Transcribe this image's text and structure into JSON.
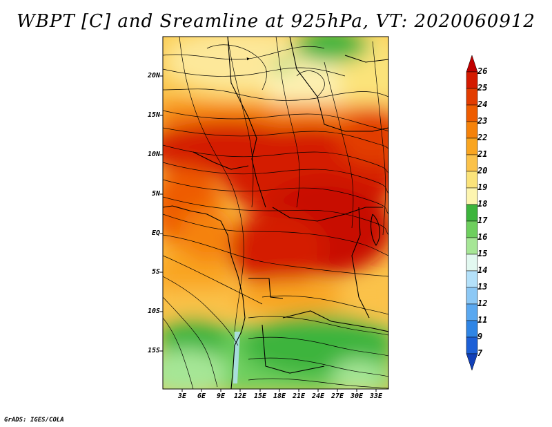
{
  "title": "WBPT [C] and Sreamline at 925hPa, VT: 2020060912",
  "footer": "GrADS: IGES/COLA",
  "map": {
    "latitude_labels": [
      "20N",
      "15N",
      "10N",
      "5N",
      "EQ",
      "5S",
      "10S",
      "15S"
    ],
    "longitude_labels": [
      "3E",
      "6E",
      "9E",
      "12E",
      "15E",
      "18E",
      "21E",
      "24E",
      "27E",
      "30E",
      "33E"
    ],
    "variable": "WBPT",
    "units": "C",
    "level": "925hPa",
    "valid_time": "2020060912"
  },
  "colorbar": {
    "labels": [
      "26",
      "25",
      "24",
      "23",
      "22",
      "21",
      "20",
      "19",
      "18",
      "17",
      "16",
      "15",
      "14",
      "13",
      "12",
      "11",
      "9",
      "7"
    ],
    "colors": [
      "#c00000",
      "#d41a00",
      "#e23c00",
      "#ee5c00",
      "#f5820a",
      "#f9a520",
      "#fbc24a",
      "#fbe37a",
      "#fdf5b0",
      "#3cb43c",
      "#6ecf5e",
      "#a6e696",
      "#e2f8f0",
      "#b4e1fa",
      "#8cc8f5",
      "#5aa8f0",
      "#2f85e5",
      "#1c5fd6",
      "#1240b8"
    ]
  }
}
